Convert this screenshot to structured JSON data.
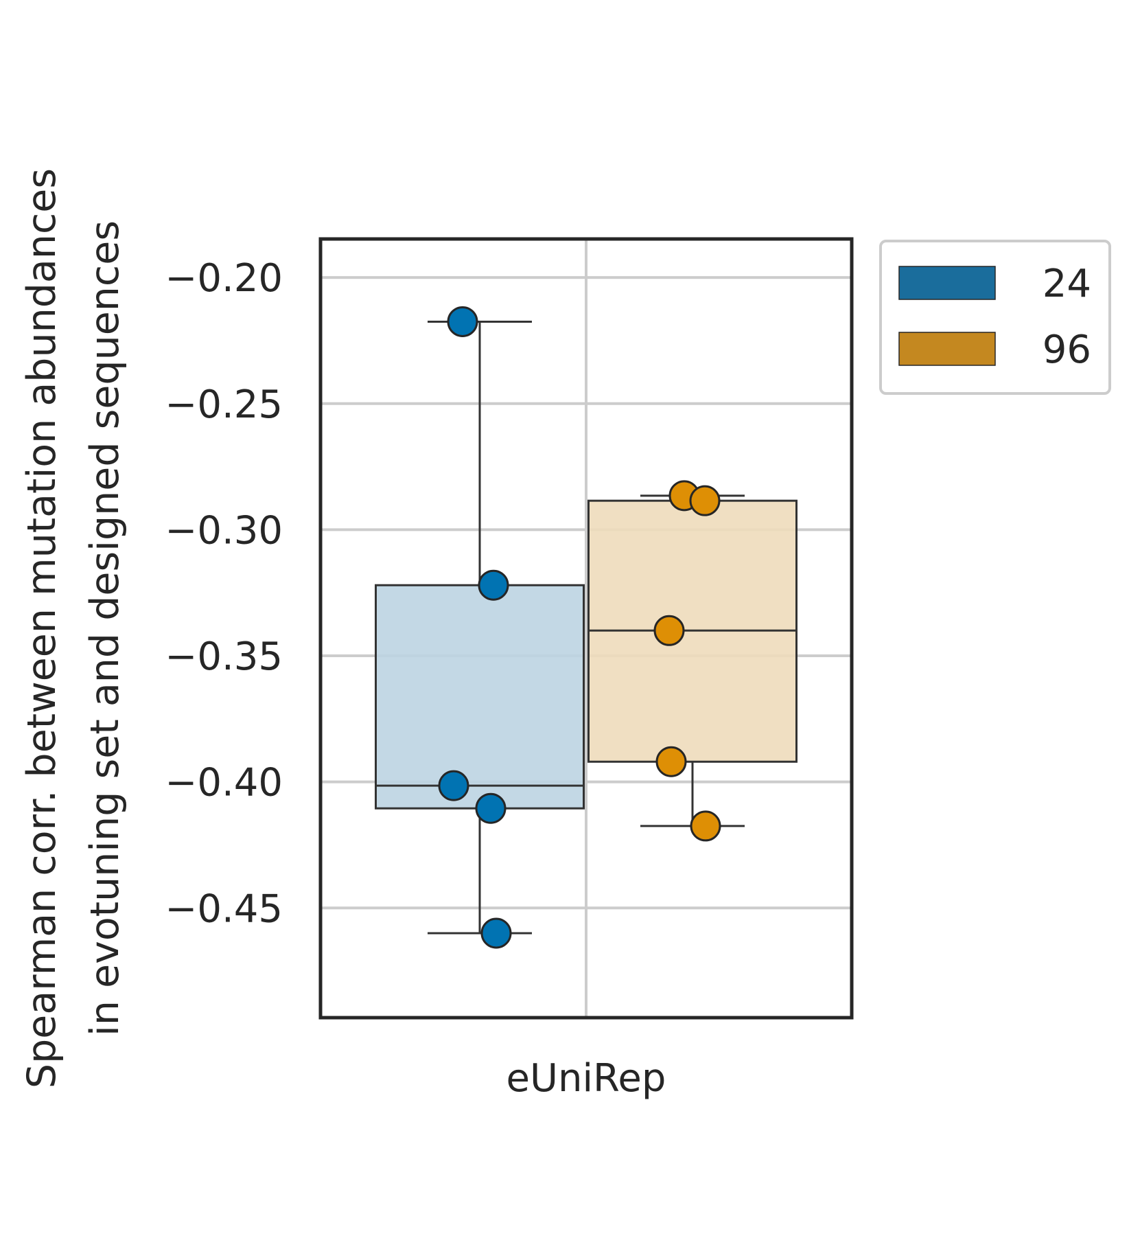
{
  "chart_data": {
    "type": "box",
    "title": "",
    "xlabel": "",
    "ylabel_lines": [
      "Spearman corr. between mutation abundances",
      "in evotuning set and designed sequences"
    ],
    "categories": [
      "eUniRep"
    ],
    "ylim": [
      -0.4935,
      -0.1847
    ],
    "yticks": [
      -0.2,
      -0.25,
      -0.3,
      -0.35,
      -0.4,
      -0.45
    ],
    "ytick_labels": [
      "−0.20",
      "−0.25",
      "−0.30",
      "−0.35",
      "−0.40",
      "−0.45"
    ],
    "grid": true,
    "legend_placement": "outside-top-right",
    "series": [
      {
        "name": "24",
        "color": "#0173b2",
        "box_fill": "#bcd4e2",
        "legend_fill": "#1a6d9c",
        "points": [
          -0.2175,
          -0.322,
          -0.4015,
          -0.4105,
          -0.46
        ],
        "box": {
          "q1": -0.4105,
          "median": -0.4015,
          "q3": -0.322,
          "whisker_low": -0.46,
          "whisker_high": -0.2175
        }
      },
      {
        "name": "96",
        "color": "#de8f05",
        "box_fill": "#eedcbb",
        "legend_fill": "#c48820",
        "points": [
          -0.2865,
          -0.2885,
          -0.34,
          -0.392,
          -0.4175
        ],
        "box": {
          "q1": -0.392,
          "median": -0.34,
          "q3": -0.2885,
          "whisker_low": -0.4175,
          "whisker_high": -0.2865
        }
      }
    ]
  }
}
